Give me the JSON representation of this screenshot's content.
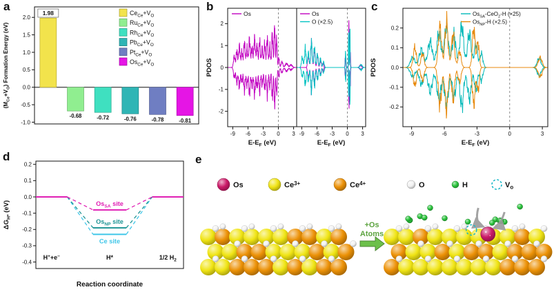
{
  "figure": {
    "panel_labels": {
      "a": "a",
      "b": "b",
      "c": "c",
      "d": "d",
      "e": "e"
    }
  },
  "chart_data": [
    {
      "id": "a",
      "type": "bar",
      "ylabel": "(M_{Ce}+V_{O}) Formation Energy (eV)",
      "ylim": [
        -1.05,
        2.3
      ],
      "yticks": [
        -1.0,
        -0.5,
        0.0,
        0.5,
        1.0,
        1.5,
        2.0
      ],
      "ytick_decimals": 1,
      "categories": [
        "Ce_{Ce}+V_{O}",
        "Ru_{Ce}+V_{O}",
        "Rh_{Ce}+V_{O}",
        "Pb_{Ce}+V_{O}",
        "Pt_{Ce}+V_{O}",
        "Os_{Ce}+V_{O}"
      ],
      "values": [
        1.98,
        -0.68,
        -0.72,
        -0.76,
        -0.78,
        -0.81
      ],
      "value_labels": [
        "1.98",
        "-0.68",
        "-0.72",
        "-0.76",
        "-0.78",
        "-0.81"
      ],
      "bar_colors": [
        "#f2e34c",
        "#90ee90",
        "#3fe0c0",
        "#2fb5b5",
        "#6f7ec2",
        "#e515e5"
      ]
    },
    {
      "id": "b1",
      "type": "line",
      "kind": "dos",
      "xlabel": "E-E_{F} (eV)",
      "ylabel": "PDOS",
      "xlim": [
        -10,
        3.6
      ],
      "ylim": [
        -2.7,
        2.7
      ],
      "xticks": [
        -9,
        -6,
        -3,
        0,
        3
      ],
      "yticks": [
        -2,
        -1,
        0,
        1,
        2
      ],
      "ytick_decimals": 0,
      "fermi_x": 0,
      "series": [
        {
          "name": "Os",
          "color": "#c000c0",
          "peaks": [
            [
              -8.7,
              0.5,
              0.22
            ],
            [
              -8.2,
              0.75,
              0.2
            ],
            [
              -7.7,
              0.95,
              0.22
            ],
            [
              -7.2,
              0.7,
              0.2
            ],
            [
              -6.7,
              1.1,
              0.22
            ],
            [
              -6.2,
              0.85,
              0.2
            ],
            [
              -5.7,
              1.25,
              0.22
            ],
            [
              -5.2,
              0.9,
              0.2
            ],
            [
              -4.7,
              1.3,
              0.22
            ],
            [
              -4.2,
              1.0,
              0.2
            ],
            [
              -3.7,
              1.2,
              0.2
            ],
            [
              -3.2,
              0.85,
              0.2
            ],
            [
              -2.7,
              1.05,
              0.2
            ],
            [
              -2.2,
              1.3,
              0.2
            ],
            [
              -1.7,
              0.95,
              0.18
            ],
            [
              -1.2,
              1.5,
              0.18
            ],
            [
              -0.75,
              1.9,
              0.15
            ],
            [
              -0.35,
              1.3,
              0.15
            ],
            [
              0.1,
              0.45,
              0.15
            ],
            [
              0.7,
              0.25,
              0.25
            ],
            [
              1.6,
              0.18,
              0.35
            ],
            [
              2.5,
              0.12,
              0.35
            ]
          ]
        }
      ]
    },
    {
      "id": "b2",
      "type": "line",
      "kind": "dos",
      "xlabel": "E-E_{F} (eV)",
      "ylabel": "",
      "xlim": [
        -10,
        3.6
      ],
      "ylim": [
        -2.7,
        2.7
      ],
      "xticks": [
        -9,
        -6,
        -3,
        0,
        3
      ],
      "yticks": [],
      "ytick_decimals": 0,
      "fermi_x": 0,
      "series": [
        {
          "name": "Os",
          "color": "#c000c0",
          "peaks": [
            [
              -7.7,
              0.55,
              0.2
            ],
            [
              -7.1,
              1.15,
              0.2
            ],
            [
              -6.5,
              0.85,
              0.18
            ],
            [
              -5.9,
              0.6,
              0.18
            ],
            [
              -5.3,
              0.35,
              0.18
            ],
            [
              -4.8,
              0.2,
              0.15
            ],
            [
              -0.4,
              0.45,
              0.1
            ],
            [
              0.3,
              2.2,
              0.07
            ],
            [
              0.55,
              0.9,
              0.08
            ],
            [
              2.6,
              0.1,
              0.3
            ]
          ]
        },
        {
          "name": "O (×2.5)",
          "color": "#00c2c2",
          "peaks": [
            [
              -8.9,
              0.45,
              0.22
            ],
            [
              -8.3,
              0.85,
              0.22
            ],
            [
              -7.7,
              0.65,
              0.2
            ],
            [
              -7.1,
              1.15,
              0.2
            ],
            [
              -6.5,
              0.9,
              0.2
            ],
            [
              -5.9,
              0.6,
              0.2
            ],
            [
              -5.3,
              0.4,
              0.2
            ],
            [
              -4.7,
              0.25,
              0.2
            ],
            [
              -0.35,
              0.7,
              0.1
            ],
            [
              0.25,
              1.5,
              0.07
            ],
            [
              0.5,
              2.0,
              0.06
            ],
            [
              2.7,
              0.12,
              0.3
            ]
          ]
        }
      ]
    },
    {
      "id": "c",
      "type": "line",
      "kind": "dos",
      "xlabel": "E-E_{F} (eV)",
      "ylabel": "PDOS",
      "xlim": [
        -9.8,
        3.5
      ],
      "ylim": [
        -0.3,
        0.3
      ],
      "xticks": [
        -9,
        -6,
        -3,
        0,
        3
      ],
      "yticks": [
        -0.2,
        -0.1,
        0.0,
        0.1,
        0.2
      ],
      "ytick_decimals": 1,
      "fermi_x": 0,
      "series": [
        {
          "name": "Os_{SA}-CeO_{2}-H (×25)",
          "color": "#00b8b8",
          "peaks": [
            [
              -8.9,
              0.05,
              0.3
            ],
            [
              -8.1,
              0.09,
              0.3
            ],
            [
              -7.3,
              0.13,
              0.3
            ],
            [
              -6.5,
              0.17,
              0.28
            ],
            [
              -5.8,
              0.2,
              0.28
            ],
            [
              -5.1,
              0.16,
              0.25
            ],
            [
              -4.4,
              0.21,
              0.25
            ],
            [
              -3.7,
              0.17,
              0.25
            ],
            [
              -3.1,
              0.12,
              0.2
            ],
            [
              -2.6,
              0.07,
              0.2
            ],
            [
              2.7,
              0.045,
              0.25
            ]
          ]
        },
        {
          "name": "Os_{NP}-H (×2.5)",
          "color": "#e8890c",
          "peaks": [
            [
              -8.7,
              0.1,
              0.2
            ],
            [
              -8.0,
              0.07,
              0.2
            ],
            [
              -6.4,
              0.2,
              0.22
            ],
            [
              -5.8,
              0.23,
              0.2
            ],
            [
              -5.2,
              0.17,
              0.2
            ],
            [
              -4.6,
              0.08,
              0.2
            ],
            [
              -3.3,
              0.2,
              0.18
            ],
            [
              -2.9,
              0.13,
              0.15
            ],
            [
              2.8,
              0.05,
              0.25
            ]
          ]
        }
      ]
    },
    {
      "id": "d",
      "type": "line",
      "kind": "energy",
      "ylabel": "ΔG_{H*} (eV)",
      "xlabel": "Reaction coordinate",
      "ylim": [
        -0.44,
        0.22
      ],
      "yticks": [
        0.2,
        0.1,
        0.0,
        -0.1,
        -0.2,
        -0.3,
        -0.4
      ],
      "ytick_decimals": 1,
      "stages": [
        "H^{+}+e^{−}",
        "H*",
        "1/2 H_{2}"
      ],
      "series": [
        {
          "name": "Os_{SA} site",
          "color": "#e01fb4",
          "level": -0.08
        },
        {
          "name": "Os_{NP} site",
          "color": "#1f9595",
          "level": -0.19
        },
        {
          "name": "Ce site",
          "color": "#3fc6e8",
          "level": -0.23
        }
      ]
    }
  ],
  "panel_e": {
    "legend": [
      {
        "label": "Os",
        "key": "os",
        "r": 9
      },
      {
        "label": "Ce^{3+}",
        "key": "ce3",
        "r": 9
      },
      {
        "label": "Ce^{4+}",
        "key": "ce4",
        "r": 9
      },
      {
        "label": "O",
        "key": "oxy",
        "r": 6
      },
      {
        "label": "H",
        "key": "hyd",
        "r": 5
      },
      {
        "label": "V_{o}",
        "key": "vo",
        "r": 7,
        "dashed": true
      }
    ],
    "colors": {
      "os": "#cb1a68",
      "ce3": "#f0e414",
      "ce4": "#ec9106",
      "oxy": "#f2f2f2",
      "hyd": "#2bc53d",
      "vo": "#18b8c8",
      "arrow": "#6cc04a"
    },
    "arrow_label": [
      "+Os",
      "Atoms"
    ]
  }
}
